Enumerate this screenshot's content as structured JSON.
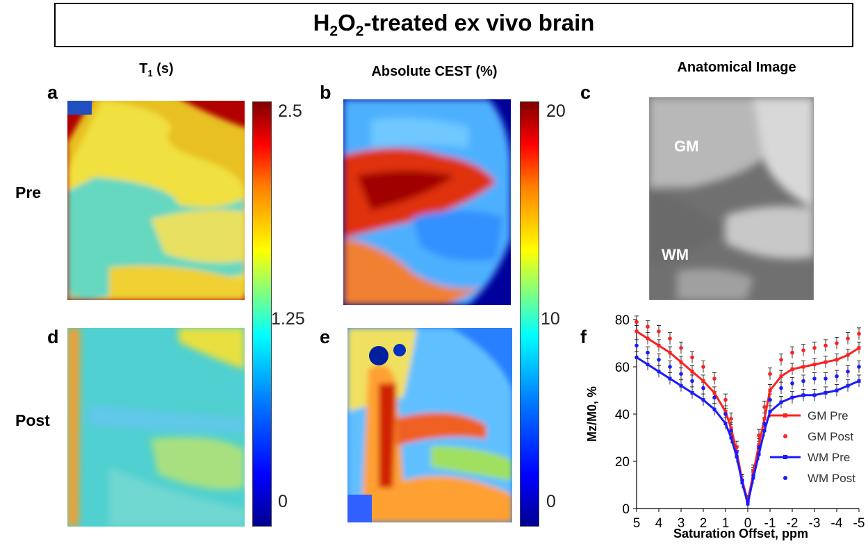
{
  "title": {
    "main_prefix": "H",
    "sub1": "2",
    "mid": "O",
    "sub2": "2",
    "suffix": "-treated ex vivo brain"
  },
  "headers": {
    "t1_prefix": "T",
    "t1_sub": "1",
    "t1_suffix": " (s)",
    "cest": "Absolute CEST (%)",
    "anatomical": "Anatomical Image"
  },
  "panel_labels": {
    "a": "a",
    "b": "b",
    "c": "c",
    "d": "d",
    "e": "e",
    "f": "f"
  },
  "row_labels": {
    "pre": "Pre",
    "post": "Post"
  },
  "colorbar_t1": {
    "top": "2.5",
    "mid": "1.25",
    "bottom": "0"
  },
  "colorbar_cest": {
    "top": "20",
    "mid": "10",
    "bottom": "0"
  },
  "anatomical_labels": {
    "gm": "GM",
    "wm": "WM"
  },
  "colors": {
    "gm": "#ff2020",
    "wm": "#1a1aff"
  },
  "chart_data": {
    "type": "line",
    "xlabel": "Saturation Offset, ppm",
    "ylabel": "Mz/M0, %",
    "xlim": [
      5,
      -5
    ],
    "ylim": [
      0,
      80
    ],
    "xticks": [
      "5",
      "4",
      "3",
      "2",
      "1",
      "0",
      "-1",
      "-2",
      "-3",
      "-4",
      "-5"
    ],
    "yticks": [
      "0",
      "20",
      "40",
      "60",
      "80"
    ],
    "x": [
      5,
      4.5,
      4,
      3.5,
      3,
      2.5,
      2,
      1.5,
      1,
      0.75,
      0.5,
      0.25,
      0,
      -0.25,
      -0.5,
      -0.75,
      -1,
      -1.5,
      -2,
      -2.5,
      -3,
      -3.5,
      -4,
      -4.5,
      -5
    ],
    "series": [
      {
        "name": "GM Pre",
        "style": "line",
        "values": [
          75,
          72,
          69,
          66,
          62,
          58,
          54,
          49,
          41,
          34,
          24,
          12,
          3,
          15,
          27,
          38,
          50,
          56,
          59,
          60,
          61,
          62,
          63,
          65,
          68
        ]
      },
      {
        "name": "GM Post",
        "style": "dots",
        "values": [
          79,
          77,
          75,
          72,
          68,
          64,
          60,
          55,
          46,
          38,
          26,
          12,
          3,
          16,
          31,
          43,
          57,
          63,
          66,
          67,
          68,
          69,
          70,
          72,
          74
        ]
      },
      {
        "name": "WM Pre",
        "style": "line",
        "values": [
          64,
          61,
          58,
          55,
          52,
          49,
          46,
          42,
          36,
          30,
          22,
          11,
          2,
          13,
          23,
          33,
          41,
          45,
          47,
          48,
          48,
          49,
          50,
          52,
          54
        ]
      },
      {
        "name": "WM Post",
        "style": "dots",
        "values": [
          69,
          66,
          63,
          60,
          57,
          54,
          51,
          47,
          40,
          33,
          24,
          12,
          3,
          14,
          26,
          36,
          46,
          51,
          53,
          54,
          55,
          55,
          56,
          58,
          60
        ]
      }
    ]
  }
}
